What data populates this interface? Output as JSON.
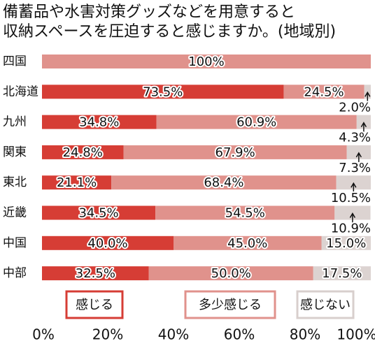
{
  "chart_data": {
    "type": "stacked-bar-horizontal",
    "title": [
      "備蓄品や水害対策グッズなどを用意すると",
      "収納スペースを圧迫すると感じますか。(地域別)"
    ],
    "categories": [
      "四国",
      "北海道",
      "九州",
      "関東",
      "東北",
      "近畿",
      "中国",
      "中部"
    ],
    "series": [
      {
        "name": "感じる",
        "color": "#d63d35",
        "border": "#d63d35",
        "values": [
          null,
          73.5,
          34.8,
          24.8,
          21.1,
          34.5,
          40.0,
          32.5
        ],
        "value_labels": [
          null,
          "73.5%",
          "34.8%",
          "24.8%",
          "21.1%",
          "34.5%",
          "40.0%",
          "32.5%"
        ]
      },
      {
        "name": "多少感じる",
        "color": "#e0928c",
        "border": "#e0928c",
        "values": [
          100,
          24.5,
          60.9,
          67.9,
          68.4,
          54.5,
          45.0,
          50.0
        ],
        "value_labels": [
          "100%",
          "24.5%",
          "60.9%",
          "67.9%",
          "68.4%",
          "54.5%",
          "45.0%",
          "50.0%"
        ]
      },
      {
        "name": "感じない",
        "color": "#dcd3d1",
        "border": "#d8cfcd",
        "values": [
          null,
          2.0,
          4.3,
          7.3,
          10.5,
          10.9,
          15.0,
          17.5
        ],
        "value_labels": [
          null,
          "2.0%",
          "4.3%",
          "7.3%",
          "10.5%",
          "10.9%",
          "15.0%",
          "17.5%"
        ]
      }
    ],
    "xlim": [
      0,
      100
    ],
    "xticks": [
      {
        "value": 0,
        "label": "0%"
      },
      {
        "value": 20,
        "label": "20%"
      },
      {
        "value": 40,
        "label": "40%"
      },
      {
        "value": 60,
        "label": "60%"
      },
      {
        "value": 80,
        "label": "80%"
      },
      {
        "value": 100,
        "label": "100%"
      }
    ],
    "grid": false
  }
}
